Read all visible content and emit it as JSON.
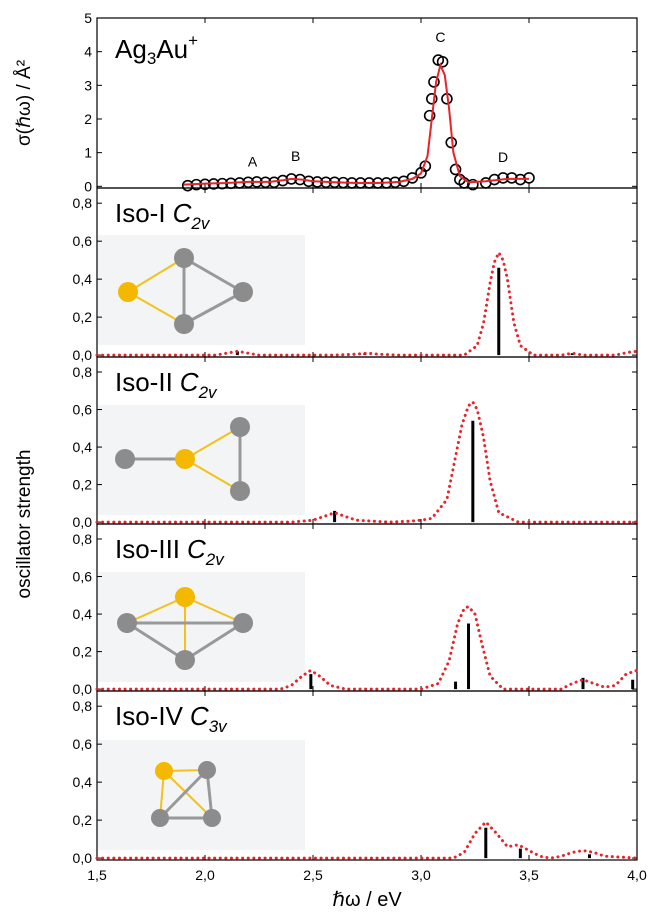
{
  "chart_data": [
    {
      "type": "line",
      "title": [
        "Ag",
        "3",
        "Au",
        "+"
      ],
      "ylabel": "σ(ℏω) / Å²",
      "annotations": [
        "A",
        "B",
        "C",
        "D"
      ],
      "xlim": [
        1.5,
        4.0
      ],
      "ylim": [
        -0.05,
        5
      ],
      "yticks": [
        0,
        1,
        2,
        3,
        4,
        5
      ],
      "series": [
        {
          "type": "circles",
          "color": "#000000",
          "x": [
            1.92,
            1.96,
            2.0,
            2.04,
            2.08,
            2.12,
            2.16,
            2.2,
            2.24,
            2.28,
            2.32,
            2.36,
            2.4,
            2.44,
            2.48,
            2.52,
            2.56,
            2.6,
            2.64,
            2.68,
            2.72,
            2.76,
            2.8,
            2.84,
            2.88,
            2.92,
            2.96,
            3.0,
            3.02,
            3.04,
            3.05,
            3.06,
            3.08,
            3.1,
            3.12,
            3.14,
            3.16,
            3.18,
            3.2,
            3.24,
            3.3,
            3.34,
            3.38,
            3.42,
            3.46,
            3.5
          ],
          "values": [
            0.02,
            0.05,
            0.06,
            0.07,
            0.08,
            0.09,
            0.1,
            0.12,
            0.13,
            0.12,
            0.12,
            0.17,
            0.22,
            0.2,
            0.15,
            0.13,
            0.12,
            0.12,
            0.11,
            0.1,
            0.1,
            0.1,
            0.1,
            0.1,
            0.12,
            0.15,
            0.25,
            0.4,
            0.6,
            2.1,
            2.6,
            3.1,
            3.75,
            3.7,
            2.6,
            1.3,
            0.5,
            0.2,
            0.1,
            0.05,
            0.1,
            0.2,
            0.25,
            0.25,
            0.2,
            0.25
          ]
        },
        {
          "type": "line",
          "color": "#e8242a",
          "x": [
            1.9,
            2.0,
            2.1,
            2.2,
            2.3,
            2.36,
            2.4,
            2.45,
            2.5,
            2.6,
            2.7,
            2.8,
            2.9,
            2.96,
            3.0,
            3.03,
            3.05,
            3.07,
            3.09,
            3.11,
            3.13,
            3.15,
            3.18,
            3.22,
            3.3,
            3.4,
            3.5
          ],
          "values": [
            0.05,
            0.08,
            0.1,
            0.13,
            0.13,
            0.18,
            0.22,
            0.2,
            0.15,
            0.12,
            0.1,
            0.1,
            0.13,
            0.22,
            0.38,
            0.9,
            2.0,
            3.1,
            3.6,
            3.3,
            2.3,
            1.0,
            0.3,
            0.12,
            0.15,
            0.22,
            0.22
          ]
        }
      ]
    },
    {
      "type": "line",
      "title": [
        "Iso-I",
        "C",
        "2v"
      ],
      "ylabel": "oscillator strength",
      "xlim": [
        1.5,
        4.0
      ],
      "ylim": [
        -0.01,
        0.88
      ],
      "yticks": [
        {
          "value": 0,
          "label": "0,0"
        },
        {
          "value": 0.2,
          "label": "0,2"
        },
        {
          "value": 0.4,
          "label": "0,4"
        },
        {
          "value": 0.6,
          "label": "0,6"
        },
        {
          "value": 0.8,
          "label": "0,8"
        }
      ],
      "series": [
        {
          "type": "stems",
          "color": "#000000",
          "x": [
            2.15,
            2.74,
            3.36,
            3.7
          ],
          "values": [
            0.02,
            0.01,
            0.46,
            0.01
          ]
        },
        {
          "type": "dotted",
          "color": "#e8242a",
          "x": [
            1.5,
            1.9,
            2.05,
            2.1,
            2.15,
            2.2,
            2.25,
            2.6,
            2.7,
            2.75,
            2.8,
            2.9,
            3.2,
            3.26,
            3.29,
            3.32,
            3.34,
            3.36,
            3.38,
            3.4,
            3.43,
            3.46,
            3.52,
            3.65,
            3.7,
            3.75,
            3.9,
            3.96,
            4.0
          ],
          "values": [
            0,
            0,
            0,
            0.01,
            0.02,
            0.01,
            0,
            0,
            0.005,
            0.01,
            0.005,
            0,
            0,
            0.05,
            0.17,
            0.38,
            0.49,
            0.54,
            0.5,
            0.4,
            0.17,
            0.05,
            0,
            0,
            0.01,
            0,
            0,
            0.015,
            0.02
          ]
        }
      ]
    },
    {
      "type": "line",
      "title": [
        "Iso-II",
        "C",
        "2v"
      ],
      "xlim": [
        1.5,
        4.0
      ],
      "ylim": [
        -0.01,
        0.88
      ],
      "yticks": [
        {
          "value": 0,
          "label": "0,0"
        },
        {
          "value": 0.2,
          "label": "0,2"
        },
        {
          "value": 0.4,
          "label": "0,4"
        },
        {
          "value": 0.6,
          "label": "0,6"
        },
        {
          "value": 0.8,
          "label": "0,8"
        }
      ],
      "series": [
        {
          "type": "stems",
          "color": "#000000",
          "x": [
            2.6,
            3.24
          ],
          "values": [
            0.06,
            0.54
          ]
        },
        {
          "type": "dotted",
          "color": "#e8242a",
          "x": [
            1.5,
            2.4,
            2.5,
            2.55,
            2.6,
            2.65,
            2.7,
            2.85,
            2.95,
            3.0,
            3.05,
            3.12,
            3.16,
            3.19,
            3.22,
            3.24,
            3.26,
            3.29,
            3.32,
            3.36,
            3.45,
            4.0
          ],
          "values": [
            0,
            0,
            0.01,
            0.03,
            0.05,
            0.03,
            0.01,
            0,
            0.005,
            0.01,
            0.02,
            0.12,
            0.35,
            0.52,
            0.62,
            0.64,
            0.6,
            0.45,
            0.22,
            0.05,
            0,
            0
          ]
        }
      ]
    },
    {
      "type": "line",
      "title": [
        "Iso-III",
        "C",
        "2v"
      ],
      "xlim": [
        1.5,
        4.0
      ],
      "ylim": [
        -0.01,
        0.88
      ],
      "yticks": [
        {
          "value": 0,
          "label": "0,0"
        },
        {
          "value": 0.2,
          "label": "0,2"
        },
        {
          "value": 0.4,
          "label": "0,4"
        },
        {
          "value": 0.6,
          "label": "0,6"
        },
        {
          "value": 0.8,
          "label": "0,8"
        }
      ],
      "series": [
        {
          "type": "stems",
          "color": "#000000",
          "x": [
            2.49,
            3.16,
            3.22,
            3.75,
            3.98
          ],
          "values": [
            0.08,
            0.04,
            0.35,
            0.06,
            0.05
          ]
        },
        {
          "type": "dotted",
          "color": "#e8242a",
          "x": [
            1.5,
            2.35,
            2.4,
            2.45,
            2.49,
            2.53,
            2.58,
            2.65,
            3.0,
            3.08,
            3.13,
            3.17,
            3.2,
            3.22,
            3.25,
            3.28,
            3.32,
            3.38,
            3.65,
            3.7,
            3.75,
            3.8,
            3.85,
            3.9,
            3.95,
            4.0
          ],
          "values": [
            0,
            0,
            0.02,
            0.07,
            0.1,
            0.07,
            0.02,
            0,
            0,
            0.03,
            0.15,
            0.35,
            0.43,
            0.44,
            0.4,
            0.25,
            0.07,
            0,
            0,
            0.03,
            0.05,
            0.03,
            0.01,
            0.02,
            0.08,
            0.1
          ]
        }
      ]
    },
    {
      "type": "line",
      "title": [
        "Iso-IV",
        "C",
        "3v"
      ],
      "xlabel": "ℏω / eV",
      "xlim": [
        1.5,
        4.0
      ],
      "ylim": [
        -0.01,
        0.88
      ],
      "xticks": [
        {
          "value": 1.5,
          "label": "1,5"
        },
        {
          "value": 2.0,
          "label": "2,0"
        },
        {
          "value": 2.5,
          "label": "2,5"
        },
        {
          "value": 3.0,
          "label": "3,0"
        },
        {
          "value": 3.5,
          "label": "3,5"
        },
        {
          "value": 4.0,
          "label": "4,0"
        }
      ],
      "yticks": [
        {
          "value": 0,
          "label": "0,0"
        },
        {
          "value": 0.2,
          "label": "0,2"
        },
        {
          "value": 0.4,
          "label": "0,4"
        },
        {
          "value": 0.6,
          "label": "0,6"
        },
        {
          "value": 0.8,
          "label": "0,8"
        }
      ],
      "series": [
        {
          "type": "stems",
          "color": "#000000",
          "x": [
            3.3,
            3.46,
            3.78
          ],
          "values": [
            0.16,
            0.05,
            0.02
          ]
        },
        {
          "type": "dotted",
          "color": "#e8242a",
          "x": [
            1.5,
            3.15,
            3.2,
            3.25,
            3.3,
            3.35,
            3.4,
            3.45,
            3.5,
            3.55,
            3.6,
            3.65,
            3.7,
            3.75,
            3.8,
            3.85,
            4.0
          ],
          "values": [
            0,
            0,
            0.03,
            0.13,
            0.19,
            0.13,
            0.06,
            0.07,
            0.04,
            0.01,
            0,
            0.01,
            0.03,
            0.04,
            0.03,
            0.01,
            0
          ]
        }
      ]
    }
  ]
}
